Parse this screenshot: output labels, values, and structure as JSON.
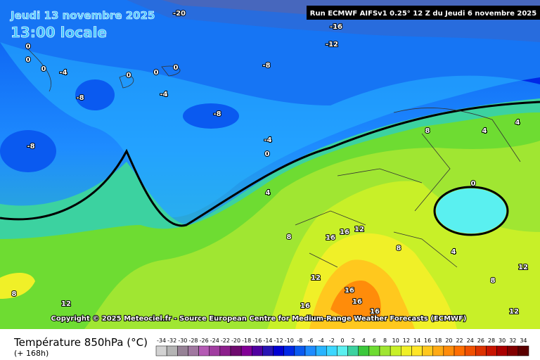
{
  "header": {
    "date": "Jeudi 13 novembre 2025",
    "time": "13:00 locale",
    "run": "Run ECMWF AIFSv1 0.25° 12 Z du Jeudi 6 novembre 2025"
  },
  "contour_labels": [
    -20,
    -16,
    -12,
    -8,
    -8,
    -8,
    -8,
    -4,
    -4,
    -4,
    0,
    0,
    0,
    0,
    0,
    0,
    0,
    0,
    4,
    4,
    4,
    4,
    8,
    8,
    8,
    8,
    8,
    12,
    12,
    12,
    12,
    12,
    16,
    16,
    16,
    16,
    16,
    16
  ],
  "copyright": "Copyright © 2025 Meteociel.fr - Source European Centre for Medium-Range Weather Forecasts (ECMWF)",
  "footer": {
    "title": "Température 850hPa (°C)",
    "lead": "(+ 168h)"
  },
  "legend": {
    "scale": [
      -34,
      -32,
      -30,
      -28,
      -26,
      -24,
      -22,
      -20,
      -18,
      -16,
      -14,
      -12,
      -10,
      -8,
      -6,
      -4,
      -2,
      0,
      2,
      4,
      6,
      8,
      10,
      12,
      14,
      16,
      18,
      20,
      22,
      24,
      26,
      28,
      30,
      32,
      34
    ],
    "colors": [
      "#d2d2d2",
      "#b4b4b4",
      "#968296",
      "#a078a0",
      "#b45ab4",
      "#a03ca0",
      "#8c1e8c",
      "#6e0a6e",
      "#820096",
      "#5000a0",
      "#2814b4",
      "#0000d2",
      "#0028e6",
      "#0a5af0",
      "#1e8cff",
      "#28b4ff",
      "#3cd7ff",
      "#5af0f0",
      "#3cd2a0",
      "#3cc83c",
      "#6edc32",
      "#a0e632",
      "#c8f028",
      "#f0f028",
      "#ffe628",
      "#ffc81e",
      "#ffaa14",
      "#ff8c0a",
      "#ff6e00",
      "#f05000",
      "#dc3200",
      "#c81400",
      "#aa0000",
      "#820000",
      "#5a0000"
    ]
  }
}
